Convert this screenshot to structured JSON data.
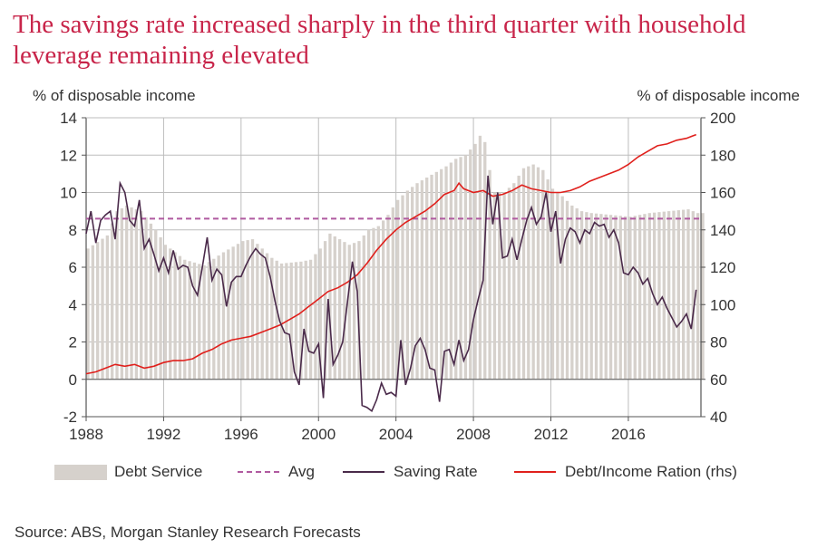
{
  "title": "The savings rate increased sharply in the third quarter with household leverage remaining elevated",
  "source": "Source: ABS, Morgan Stanley Research Forecasts",
  "colors": {
    "title": "#c8254a",
    "debt_service": "#d6d1cc",
    "avg": "#b05aa0",
    "saving_rate": "#4a2a4a",
    "debt_income": "#e0201c"
  },
  "chart_data": {
    "type": "bar+line",
    "left_axis_label": "% of disposable income",
    "right_axis_label": "% of disposable income",
    "left_ylim": [
      -2,
      14
    ],
    "left_yticks": [
      -2,
      0,
      2,
      4,
      6,
      8,
      10,
      12,
      14
    ],
    "right_ylim": [
      40,
      200
    ],
    "right_yticks": [
      40,
      60,
      80,
      100,
      120,
      140,
      160,
      180,
      200
    ],
    "xlim": [
      1988,
      2019.75
    ],
    "xticks": [
      1988,
      1992,
      1996,
      2000,
      2004,
      2008,
      2012,
      2016
    ],
    "grid": "horizontal and vertical",
    "legend_position": "bottom",
    "legend": [
      "Debt Service",
      "Avg",
      "Saving Rate",
      "Debt/Income Ration (rhs)"
    ],
    "series": [
      {
        "name": "Debt Service",
        "kind": "bar",
        "axis": "left",
        "points": [
          [
            1988,
            7.0
          ],
          [
            1989,
            7.7
          ],
          [
            1989.5,
            9.0
          ],
          [
            1990,
            9.3
          ],
          [
            1990.75,
            9.0
          ],
          [
            1991.5,
            8.0
          ],
          [
            1992,
            7.2
          ],
          [
            1993,
            6.4
          ],
          [
            1994,
            6.1
          ],
          [
            1995,
            6.8
          ],
          [
            1996,
            7.4
          ],
          [
            1996.5,
            7.5
          ],
          [
            1997,
            7.0
          ],
          [
            1997.5,
            6.5
          ],
          [
            1998,
            6.2
          ],
          [
            1999,
            6.3
          ],
          [
            1999.5,
            6.4
          ],
          [
            2000,
            7.0
          ],
          [
            2000.5,
            7.8
          ],
          [
            2001,
            7.5
          ],
          [
            2001.5,
            7.2
          ],
          [
            2002,
            7.4
          ],
          [
            2002.5,
            8.0
          ],
          [
            2003,
            8.2
          ],
          [
            2003.5,
            8.8
          ],
          [
            2004,
            9.6
          ],
          [
            2004.5,
            10.1
          ],
          [
            2005,
            10.5
          ],
          [
            2005.5,
            10.8
          ],
          [
            2006,
            11.1
          ],
          [
            2006.5,
            11.4
          ],
          [
            2007,
            11.8
          ],
          [
            2007.5,
            12.0
          ],
          [
            2008,
            12.6
          ],
          [
            2008.4,
            13.3
          ],
          [
            2008.75,
            11.2
          ],
          [
            2009,
            10.0
          ],
          [
            2009.5,
            10.0
          ],
          [
            2010,
            10.5
          ],
          [
            2010.5,
            11.3
          ],
          [
            2011,
            11.5
          ],
          [
            2011.5,
            11.2
          ],
          [
            2012,
            10.2
          ],
          [
            2012.5,
            9.8
          ],
          [
            2013,
            9.3
          ],
          [
            2013.5,
            9.0
          ],
          [
            2014,
            8.9
          ],
          [
            2015,
            8.8
          ],
          [
            2016,
            8.7
          ],
          [
            2017,
            8.9
          ],
          [
            2018,
            9.0
          ],
          [
            2019,
            9.1
          ],
          [
            2019.5,
            8.9
          ]
        ]
      },
      {
        "name": "Avg",
        "kind": "dashed-line",
        "axis": "left",
        "points": [
          [
            1988,
            8.6
          ],
          [
            2019.75,
            8.6
          ]
        ]
      },
      {
        "name": "Saving Rate",
        "kind": "line",
        "axis": "left",
        "points": [
          [
            1988,
            7.8
          ],
          [
            1988.25,
            9.0
          ],
          [
            1988.5,
            7.3
          ],
          [
            1988.75,
            8.5
          ],
          [
            1989,
            8.8
          ],
          [
            1989.25,
            9.0
          ],
          [
            1989.5,
            7.5
          ],
          [
            1989.75,
            10.5
          ],
          [
            1990,
            10.0
          ],
          [
            1990.25,
            8.5
          ],
          [
            1990.5,
            8.2
          ],
          [
            1990.75,
            9.6
          ],
          [
            1991,
            7.0
          ],
          [
            1991.25,
            7.5
          ],
          [
            1991.5,
            6.7
          ],
          [
            1991.75,
            5.8
          ],
          [
            1992,
            6.5
          ],
          [
            1992.25,
            5.7
          ],
          [
            1992.5,
            6.9
          ],
          [
            1992.75,
            5.9
          ],
          [
            1993,
            6.1
          ],
          [
            1993.25,
            6.0
          ],
          [
            1993.5,
            5.0
          ],
          [
            1993.75,
            4.5
          ],
          [
            1994,
            6.0
          ],
          [
            1994.25,
            7.6
          ],
          [
            1994.5,
            5.3
          ],
          [
            1994.75,
            5.9
          ],
          [
            1995,
            5.6
          ],
          [
            1995.25,
            3.9
          ],
          [
            1995.5,
            5.2
          ],
          [
            1995.75,
            5.5
          ],
          [
            1996,
            5.5
          ],
          [
            1996.25,
            6.1
          ],
          [
            1996.5,
            6.6
          ],
          [
            1996.75,
            7.0
          ],
          [
            1997,
            6.7
          ],
          [
            1997.25,
            6.5
          ],
          [
            1997.5,
            5.5
          ],
          [
            1997.75,
            4.2
          ],
          [
            1998,
            3.1
          ],
          [
            1998.25,
            2.5
          ],
          [
            1998.5,
            2.4
          ],
          [
            1998.75,
            0.4
          ],
          [
            1999,
            -0.3
          ],
          [
            1999.25,
            2.7
          ],
          [
            1999.5,
            1.5
          ],
          [
            1999.75,
            1.4
          ],
          [
            2000,
            1.9
          ],
          [
            2000.25,
            -1.0
          ],
          [
            2000.5,
            4.3
          ],
          [
            2000.75,
            0.8
          ],
          [
            2001,
            1.3
          ],
          [
            2001.25,
            2.0
          ],
          [
            2001.5,
            4.2
          ],
          [
            2001.75,
            6.3
          ],
          [
            2002,
            4.7
          ],
          [
            2002.25,
            -1.4
          ],
          [
            2002.5,
            -1.5
          ],
          [
            2002.75,
            -1.7
          ],
          [
            2003,
            -1.1
          ],
          [
            2003.25,
            -0.2
          ],
          [
            2003.5,
            -0.8
          ],
          [
            2003.75,
            -0.7
          ],
          [
            2004,
            -0.9
          ],
          [
            2004.25,
            2.1
          ],
          [
            2004.5,
            -0.3
          ],
          [
            2004.75,
            0.6
          ],
          [
            2005,
            1.8
          ],
          [
            2005.25,
            2.2
          ],
          [
            2005.5,
            1.6
          ],
          [
            2005.75,
            0.6
          ],
          [
            2006,
            0.5
          ],
          [
            2006.25,
            -1.2
          ],
          [
            2006.5,
            1.5
          ],
          [
            2006.75,
            1.6
          ],
          [
            2007,
            0.8
          ],
          [
            2007.25,
            2.1
          ],
          [
            2007.5,
            1.0
          ],
          [
            2007.75,
            1.6
          ],
          [
            2008,
            3.2
          ],
          [
            2008.25,
            4.3
          ],
          [
            2008.5,
            5.3
          ],
          [
            2008.75,
            10.9
          ],
          [
            2009,
            8.3
          ],
          [
            2009.25,
            10.0
          ],
          [
            2009.5,
            6.5
          ],
          [
            2009.75,
            6.6
          ],
          [
            2010,
            7.5
          ],
          [
            2010.25,
            6.4
          ],
          [
            2010.5,
            7.5
          ],
          [
            2010.75,
            8.5
          ],
          [
            2011,
            9.2
          ],
          [
            2011.25,
            8.3
          ],
          [
            2011.5,
            8.7
          ],
          [
            2011.75,
            10.0
          ],
          [
            2012,
            7.9
          ],
          [
            2012.25,
            9.0
          ],
          [
            2012.5,
            6.2
          ],
          [
            2012.75,
            7.5
          ],
          [
            2013,
            8.1
          ],
          [
            2013.25,
            7.9
          ],
          [
            2013.5,
            7.3
          ],
          [
            2013.75,
            8.0
          ],
          [
            2014,
            7.8
          ],
          [
            2014.25,
            8.4
          ],
          [
            2014.5,
            8.2
          ],
          [
            2014.75,
            8.3
          ],
          [
            2015,
            7.6
          ],
          [
            2015.25,
            8.0
          ],
          [
            2015.5,
            7.3
          ],
          [
            2015.75,
            5.7
          ],
          [
            2016,
            5.6
          ],
          [
            2016.25,
            6.0
          ],
          [
            2016.5,
            5.7
          ],
          [
            2016.75,
            5.1
          ],
          [
            2017,
            5.4
          ],
          [
            2017.25,
            4.6
          ],
          [
            2017.5,
            4.0
          ],
          [
            2017.75,
            4.4
          ],
          [
            2018,
            3.8
          ],
          [
            2018.25,
            3.3
          ],
          [
            2018.5,
            2.8
          ],
          [
            2018.75,
            3.1
          ],
          [
            2019,
            3.5
          ],
          [
            2019.25,
            2.7
          ],
          [
            2019.5,
            4.8
          ]
        ]
      },
      {
        "name": "Debt/Income Ration (rhs)",
        "kind": "line",
        "axis": "right",
        "points": [
          [
            1988,
            63
          ],
          [
            1988.5,
            64
          ],
          [
            1989,
            66
          ],
          [
            1989.5,
            68
          ],
          [
            1990,
            67
          ],
          [
            1990.5,
            68
          ],
          [
            1991,
            66
          ],
          [
            1991.5,
            67
          ],
          [
            1992,
            69
          ],
          [
            1992.5,
            70
          ],
          [
            1993,
            70
          ],
          [
            1993.5,
            71
          ],
          [
            1994,
            74
          ],
          [
            1994.5,
            76
          ],
          [
            1995,
            79
          ],
          [
            1995.5,
            81
          ],
          [
            1996,
            82
          ],
          [
            1996.5,
            83
          ],
          [
            1997,
            85
          ],
          [
            1997.5,
            87
          ],
          [
            1998,
            89
          ],
          [
            1998.5,
            92
          ],
          [
            1999,
            95
          ],
          [
            1999.5,
            99
          ],
          [
            2000,
            103
          ],
          [
            2000.5,
            107
          ],
          [
            2001,
            109
          ],
          [
            2001.5,
            112
          ],
          [
            2002,
            116
          ],
          [
            2002.5,
            122
          ],
          [
            2003,
            129
          ],
          [
            2003.5,
            135
          ],
          [
            2004,
            140
          ],
          [
            2004.5,
            144
          ],
          [
            2005,
            147
          ],
          [
            2005.5,
            150
          ],
          [
            2006,
            154
          ],
          [
            2006.5,
            159
          ],
          [
            2007,
            161
          ],
          [
            2007.25,
            165
          ],
          [
            2007.5,
            162
          ],
          [
            2008,
            160
          ],
          [
            2008.5,
            161
          ],
          [
            2009,
            158
          ],
          [
            2009.5,
            159
          ],
          [
            2010,
            161
          ],
          [
            2010.5,
            164
          ],
          [
            2011,
            162
          ],
          [
            2011.5,
            161
          ],
          [
            2012,
            160
          ],
          [
            2012.5,
            160
          ],
          [
            2013,
            161
          ],
          [
            2013.5,
            163
          ],
          [
            2014,
            166
          ],
          [
            2014.5,
            168
          ],
          [
            2015,
            170
          ],
          [
            2015.5,
            172
          ],
          [
            2016,
            175
          ],
          [
            2016.5,
            179
          ],
          [
            2017,
            182
          ],
          [
            2017.5,
            185
          ],
          [
            2018,
            186
          ],
          [
            2018.5,
            188
          ],
          [
            2019,
            189
          ],
          [
            2019.5,
            191
          ]
        ]
      }
    ]
  }
}
